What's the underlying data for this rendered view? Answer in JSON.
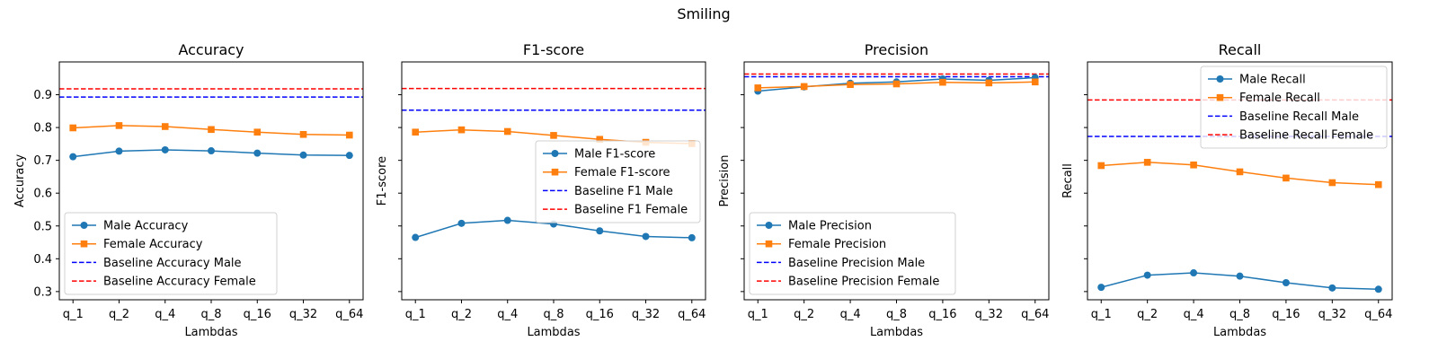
{
  "figure": {
    "suptitle": "Smiling"
  },
  "colors": {
    "male": "#1f77b4",
    "female": "#ff7f0e",
    "baseline_male": "#0000ff",
    "baseline_female": "#ff0000",
    "axes": "#000000",
    "background": "#ffffff"
  },
  "chart_data": [
    {
      "type": "line",
      "title": "Accuracy",
      "xlabel": "Lambdas",
      "ylabel": "Accuracy",
      "categories": [
        "q_1",
        "q_2",
        "q_4",
        "q_8",
        "q_16",
        "q_32",
        "q_64"
      ],
      "ylim": [
        0.275,
        1.0
      ],
      "yticks": [
        0.3,
        0.4,
        0.5,
        0.6,
        0.7,
        0.8,
        0.9
      ],
      "ytick_labels": [
        "0.3",
        "0.4",
        "0.5",
        "0.6",
        "0.7",
        "0.8",
        "0.9"
      ],
      "series": [
        {
          "name": "Male Accuracy",
          "values": [
            0.711,
            0.728,
            0.732,
            0.729,
            0.722,
            0.716,
            0.715
          ]
        },
        {
          "name": "Female Accuracy",
          "values": [
            0.799,
            0.806,
            0.803,
            0.794,
            0.786,
            0.779,
            0.777
          ]
        }
      ],
      "baselines": [
        {
          "name": "Baseline Accuracy Male",
          "value": 0.893
        },
        {
          "name": "Baseline Accuracy Female",
          "value": 0.918
        }
      ],
      "legend": "lower-left",
      "grid": false
    },
    {
      "type": "line",
      "title": "F1-score",
      "xlabel": "Lambdas",
      "ylabel": "F1-score",
      "categories": [
        "q_1",
        "q_2",
        "q_4",
        "q_8",
        "q_16",
        "q_32",
        "q_64"
      ],
      "ylim": [
        0.275,
        1.0
      ],
      "yticks": [
        0.3,
        0.4,
        0.5,
        0.6,
        0.7,
        0.8,
        0.9
      ],
      "ytick_labels": [],
      "series": [
        {
          "name": "Male F1-score",
          "values": [
            0.465,
            0.508,
            0.517,
            0.506,
            0.485,
            0.468,
            0.464
          ]
        },
        {
          "name": "Female F1-score",
          "values": [
            0.786,
            0.793,
            0.788,
            0.776,
            0.764,
            0.755,
            0.751
          ]
        }
      ],
      "baselines": [
        {
          "name": "Baseline F1 Male",
          "value": 0.853
        },
        {
          "name": "Baseline F1 Female",
          "value": 0.919
        }
      ],
      "legend": "center-right",
      "grid": false
    },
    {
      "type": "line",
      "title": "Precision",
      "xlabel": "Lambdas",
      "ylabel": "Precision",
      "categories": [
        "q_1",
        "q_2",
        "q_4",
        "q_8",
        "q_16",
        "q_32",
        "q_64"
      ],
      "ylim": [
        0.275,
        1.0
      ],
      "yticks": [
        0.3,
        0.4,
        0.5,
        0.6,
        0.7,
        0.8,
        0.9
      ],
      "ytick_labels": [],
      "series": [
        {
          "name": "Male Precision",
          "values": [
            0.911,
            0.924,
            0.935,
            0.939,
            0.948,
            0.944,
            0.952
          ]
        },
        {
          "name": "Female Precision",
          "values": [
            0.921,
            0.925,
            0.931,
            0.933,
            0.938,
            0.936,
            0.939
          ]
        }
      ],
      "baselines": [
        {
          "name": "Baseline Precision Male",
          "value": 0.955
        },
        {
          "name": "Baseline Precision Female",
          "value": 0.963
        }
      ],
      "legend": "lower-left",
      "grid": false
    },
    {
      "type": "line",
      "title": "Recall",
      "xlabel": "Lambdas",
      "ylabel": "Recall",
      "categories": [
        "q_1",
        "q_2",
        "q_4",
        "q_8",
        "q_16",
        "q_32",
        "q_64"
      ],
      "ylim": [
        0.275,
        1.0
      ],
      "yticks": [
        0.3,
        0.4,
        0.5,
        0.6,
        0.7,
        0.8,
        0.9
      ],
      "ytick_labels": [],
      "series": [
        {
          "name": "Male Recall",
          "values": [
            0.313,
            0.35,
            0.357,
            0.347,
            0.327,
            0.311,
            0.307
          ]
        },
        {
          "name": "Female Recall",
          "values": [
            0.684,
            0.694,
            0.686,
            0.665,
            0.646,
            0.632,
            0.626
          ]
        }
      ],
      "baselines": [
        {
          "name": "Baseline Recall Male",
          "value": 0.773
        },
        {
          "name": "Baseline Recall Female",
          "value": 0.884
        }
      ],
      "legend": "upper-right",
      "grid": false
    }
  ]
}
